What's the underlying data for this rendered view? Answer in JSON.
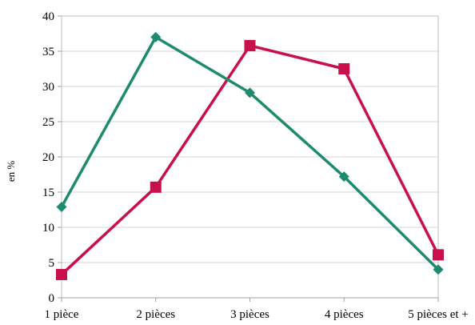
{
  "chart_data": {
    "type": "line",
    "title": "",
    "xlabel": "",
    "ylabel": "en %",
    "ylim": [
      0,
      40
    ],
    "yticks": [
      0,
      5,
      10,
      15,
      20,
      25,
      30,
      35,
      40
    ],
    "grid": true,
    "legend": "none",
    "categories": [
      "1 pièce",
      "2 pièces",
      "3 pièces",
      "4 pièces",
      "5 pièces et +"
    ],
    "series": [
      {
        "color": "#C8104A",
        "marker": "square",
        "values": [
          3.3,
          15.7,
          35.8,
          32.5,
          6.1
        ]
      },
      {
        "color": "#1E8A6E",
        "marker": "diamond",
        "values": [
          12.9,
          37.0,
          29.1,
          17.2,
          4.0
        ]
      }
    ]
  }
}
